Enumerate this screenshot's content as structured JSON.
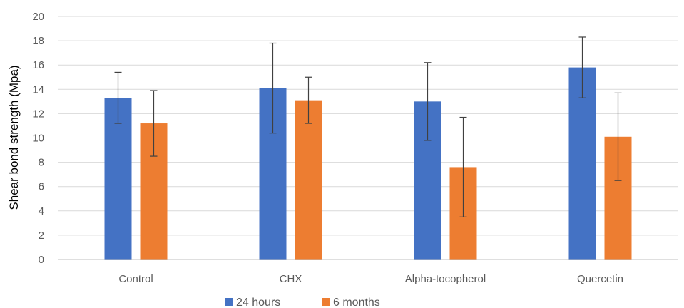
{
  "chart_data": {
    "type": "bar",
    "categories": [
      "Control",
      "CHX",
      "Alpha-tocopherol",
      "Quercetin"
    ],
    "series": [
      {
        "name": "24 hours",
        "color": "#4472C4",
        "values": [
          13.3,
          14.1,
          13.0,
          15.8
        ],
        "error": [
          2.1,
          3.7,
          3.2,
          2.5
        ]
      },
      {
        "name": "6 months",
        "color": "#ED7D31",
        "values": [
          11.2,
          13.1,
          7.6,
          10.1
        ],
        "error": [
          2.7,
          1.9,
          4.1,
          3.6
        ]
      }
    ],
    "xlabel": "",
    "ylabel": "Shear bond strength (Mpa)",
    "ylim": [
      0,
      20
    ],
    "yticks": [
      0,
      2,
      4,
      6,
      8,
      10,
      12,
      14,
      16,
      18,
      20
    ],
    "grid": true,
    "legend": "bottom-center"
  }
}
